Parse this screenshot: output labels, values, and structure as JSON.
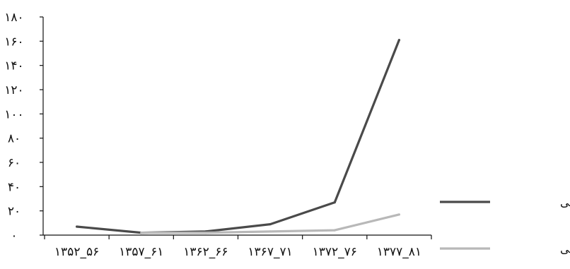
{
  "chart_data": {
    "type": "line",
    "categories": [
      "۱۳۵۲_۵۶",
      "۱۳۵۷_۶۱",
      "۱۳۶۲_۶۶",
      "۱۳۶۷_۷۱",
      "۱۳۷۲_۷۶",
      "۱۳۷۷_۸۱"
    ],
    "series": [
      {
        "name": "مقالات داخلی",
        "color": "#4a4a4a",
        "values": [
          7,
          2,
          3,
          9,
          27,
          161
        ]
      },
      {
        "name": "مقالات خارجی",
        "color": "#b8b8b8",
        "values": [
          null,
          2,
          2,
          3,
          4,
          17
        ]
      }
    ],
    "yticks": [
      "۰",
      "۲۰",
      "۴۰",
      "۶۰",
      "۸۰",
      "۱۰۰",
      "۱۲۰",
      "۱۴۰",
      "۱۶۰",
      "۱۸۰"
    ],
    "ylim": [
      0,
      180
    ],
    "grid": false,
    "legend_position": "right"
  }
}
